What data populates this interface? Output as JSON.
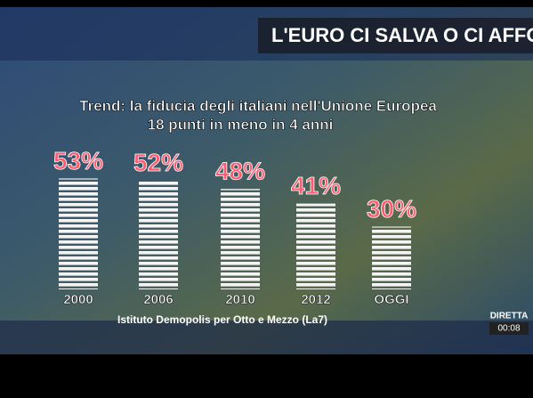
{
  "header": "L'EURO CI SALVA O CI AFFO",
  "chart_data": {
    "type": "bar",
    "title": "Trend: la fiducia degli italiani nell'Unione Europea",
    "subtitle": "18 punti in meno in 4 anni",
    "categories": [
      "2000",
      "2006",
      "2010",
      "2012",
      "OGGI"
    ],
    "values": [
      53,
      52,
      48,
      41,
      30
    ],
    "value_labels": [
      "53%",
      "52%",
      "48%",
      "41%",
      "30%"
    ],
    "color": "#ffffff",
    "label_color": "#ff5a6e",
    "source": "Istituto Demopolis per Otto e Mezzo (La7)"
  },
  "live": {
    "label": "DIRETTA",
    "time": "00:08"
  }
}
